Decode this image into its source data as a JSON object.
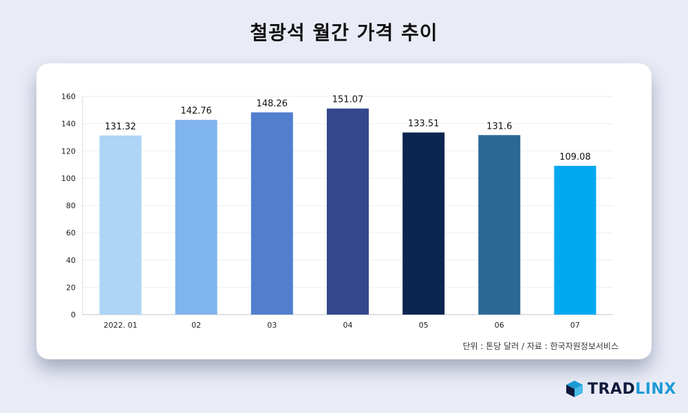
{
  "title": "철광석 월간 가격 추이",
  "source_note": "단위 : 톤당 달러 / 자료 : 한국자원정보서비스",
  "brand": {
    "part1": "TRAD",
    "part2": "LINX"
  },
  "chart_data": {
    "type": "bar",
    "title": "철광석 월간 가격 추이",
    "categories": [
      "2022. 01",
      "02",
      "03",
      "04",
      "05",
      "06",
      "07"
    ],
    "values": [
      131.32,
      142.76,
      148.26,
      151.07,
      133.51,
      131.6,
      109.08
    ],
    "value_labels": [
      "131.32",
      "142.76",
      "148.26",
      "151.07",
      "133.51",
      "131.6",
      "109.08"
    ],
    "bar_colors": [
      "#aed4f6",
      "#80b4ed",
      "#517fcd",
      "#33478a",
      "#0b2550",
      "#2d6893",
      "#00a8f0"
    ],
    "xlabel": "",
    "ylabel": "",
    "ylim": [
      0,
      160
    ],
    "yticks": [
      0,
      20,
      40,
      60,
      80,
      100,
      120,
      140,
      160
    ],
    "grid": true,
    "legend": "none"
  }
}
